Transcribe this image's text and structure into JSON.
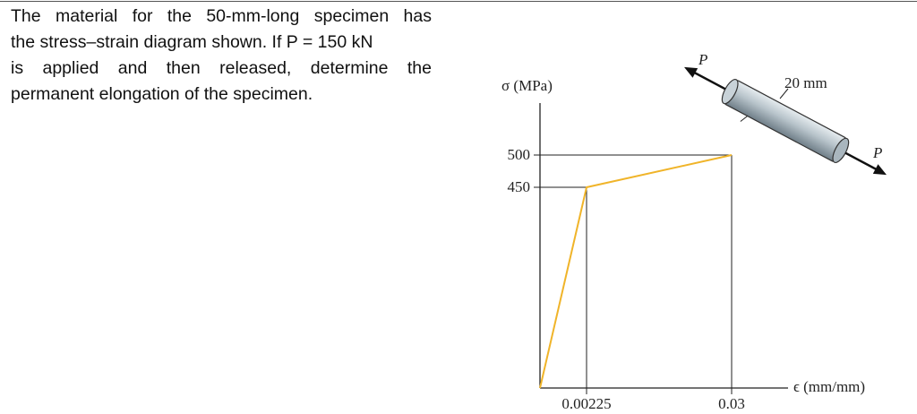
{
  "question": {
    "lines": [
      "The material for the 50-mm-long specimen has",
      "the stress–strain diagram shown. If P = 150 kN",
      "is applied and then released, determine the",
      "permanent elongation of the specimen."
    ]
  },
  "figure": {
    "y_axis_label": "σ (MPa)",
    "x_axis_label": "ϵ (mm/mm)",
    "y_tick_labels": [
      "500",
      "450"
    ],
    "x_tick_labels": [
      "0.00225",
      "0.03"
    ],
    "diameter_label": "20 mm",
    "force_labels": [
      "P",
      "P"
    ]
  }
}
